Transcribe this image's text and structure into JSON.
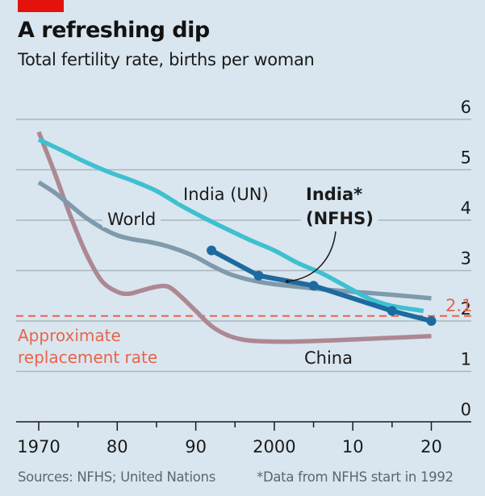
{
  "header": {
    "title": "A refreshing dip",
    "subtitle": "Total fertility rate, births per woman"
  },
  "footer": {
    "sources": "Sources: NFHS; United Nations",
    "note": "*Data from NFHS start in 1992"
  },
  "colors": {
    "brand_red": "#e3120b",
    "india_un": "#3fc0d0",
    "india_nfhs": "#1c6aa0",
    "world": "#7f9aab",
    "china": "#ad8893",
    "replacement": "#e8644a",
    "grid": "#a9b6bf",
    "axis": "#1a1a1a"
  },
  "chart_data": {
    "type": "line",
    "title": "A refreshing dip",
    "subtitle": "Total fertility rate, births per woman",
    "xlabel": "",
    "ylabel": "Total fertility rate, births per woman",
    "xlim": [
      1967.5,
      2025
    ],
    "ylim": [
      0,
      6
    ],
    "grid": true,
    "y_axis_side": "right",
    "x_ticks": [
      1970,
      1975,
      1980,
      1985,
      1990,
      1995,
      2000,
      2005,
      2010,
      2015,
      2020
    ],
    "x_tick_labels": [
      {
        "x": 1970,
        "label": "1970"
      },
      {
        "x": 1980,
        "label": "80"
      },
      {
        "x": 1990,
        "label": "90"
      },
      {
        "x": 2000,
        "label": "2000"
      },
      {
        "x": 2010,
        "label": "10"
      },
      {
        "x": 2020,
        "label": "20"
      }
    ],
    "y_ticks": [
      {
        "y": 0,
        "label": "0"
      },
      {
        "y": 1,
        "label": "1"
      },
      {
        "y": 2,
        "label": "2"
      },
      {
        "y": 3,
        "label": "3"
      },
      {
        "y": 4,
        "label": "4"
      },
      {
        "y": 5,
        "label": "5"
      },
      {
        "y": 6,
        "label": "6"
      }
    ],
    "series": [
      {
        "name": "World",
        "label": "World",
        "x": [
          1970,
          1972,
          1974,
          1976,
          1978,
          1980,
          1982,
          1984,
          1986,
          1988,
          1990,
          1992,
          1994,
          1996,
          1998,
          2000,
          2003,
          2006,
          2010,
          2015,
          2020
        ],
        "values": [
          4.75,
          4.55,
          4.3,
          4.05,
          3.85,
          3.7,
          3.62,
          3.57,
          3.5,
          3.4,
          3.27,
          3.1,
          2.95,
          2.85,
          2.78,
          2.73,
          2.68,
          2.63,
          2.58,
          2.52,
          2.45
        ]
      },
      {
        "name": "India (UN)",
        "label": "India (UN)",
        "x": [
          1970,
          1973,
          1976,
          1979,
          1982,
          1985,
          1988,
          1991,
          1994,
          1997,
          2000,
          2003,
          2006,
          2009,
          2012,
          2015,
          2019
        ],
        "values": [
          5.6,
          5.38,
          5.15,
          4.95,
          4.78,
          4.58,
          4.3,
          4.05,
          3.82,
          3.6,
          3.4,
          3.15,
          2.95,
          2.7,
          2.45,
          2.3,
          2.2
        ]
      },
      {
        "name": "China",
        "label": "China",
        "x": [
          1970,
          1972,
          1974,
          1976,
          1978,
          1980,
          1981.5,
          1983,
          1985,
          1986.5,
          1988,
          1990,
          1992,
          1994,
          1996,
          1998,
          2002,
          2008,
          2014,
          2020
        ],
        "values": [
          5.75,
          4.95,
          4.1,
          3.35,
          2.8,
          2.58,
          2.54,
          2.6,
          2.68,
          2.68,
          2.5,
          2.2,
          1.9,
          1.72,
          1.63,
          1.6,
          1.59,
          1.62,
          1.66,
          1.7
        ]
      },
      {
        "name": "India* (NFHS)",
        "label_line1": "India*",
        "label_line2": "(NFHS)",
        "markers": true,
        "x": [
          1992,
          1998,
          2005,
          2015,
          2020
        ],
        "values": [
          3.4,
          2.9,
          2.7,
          2.2,
          2.0
        ]
      }
    ],
    "reference_line": {
      "value": 2.1,
      "label": "2.1",
      "annotation_line1": "Approximate",
      "annotation_line2": "replacement rate",
      "style": "dashed"
    },
    "legend": "inline labels"
  }
}
